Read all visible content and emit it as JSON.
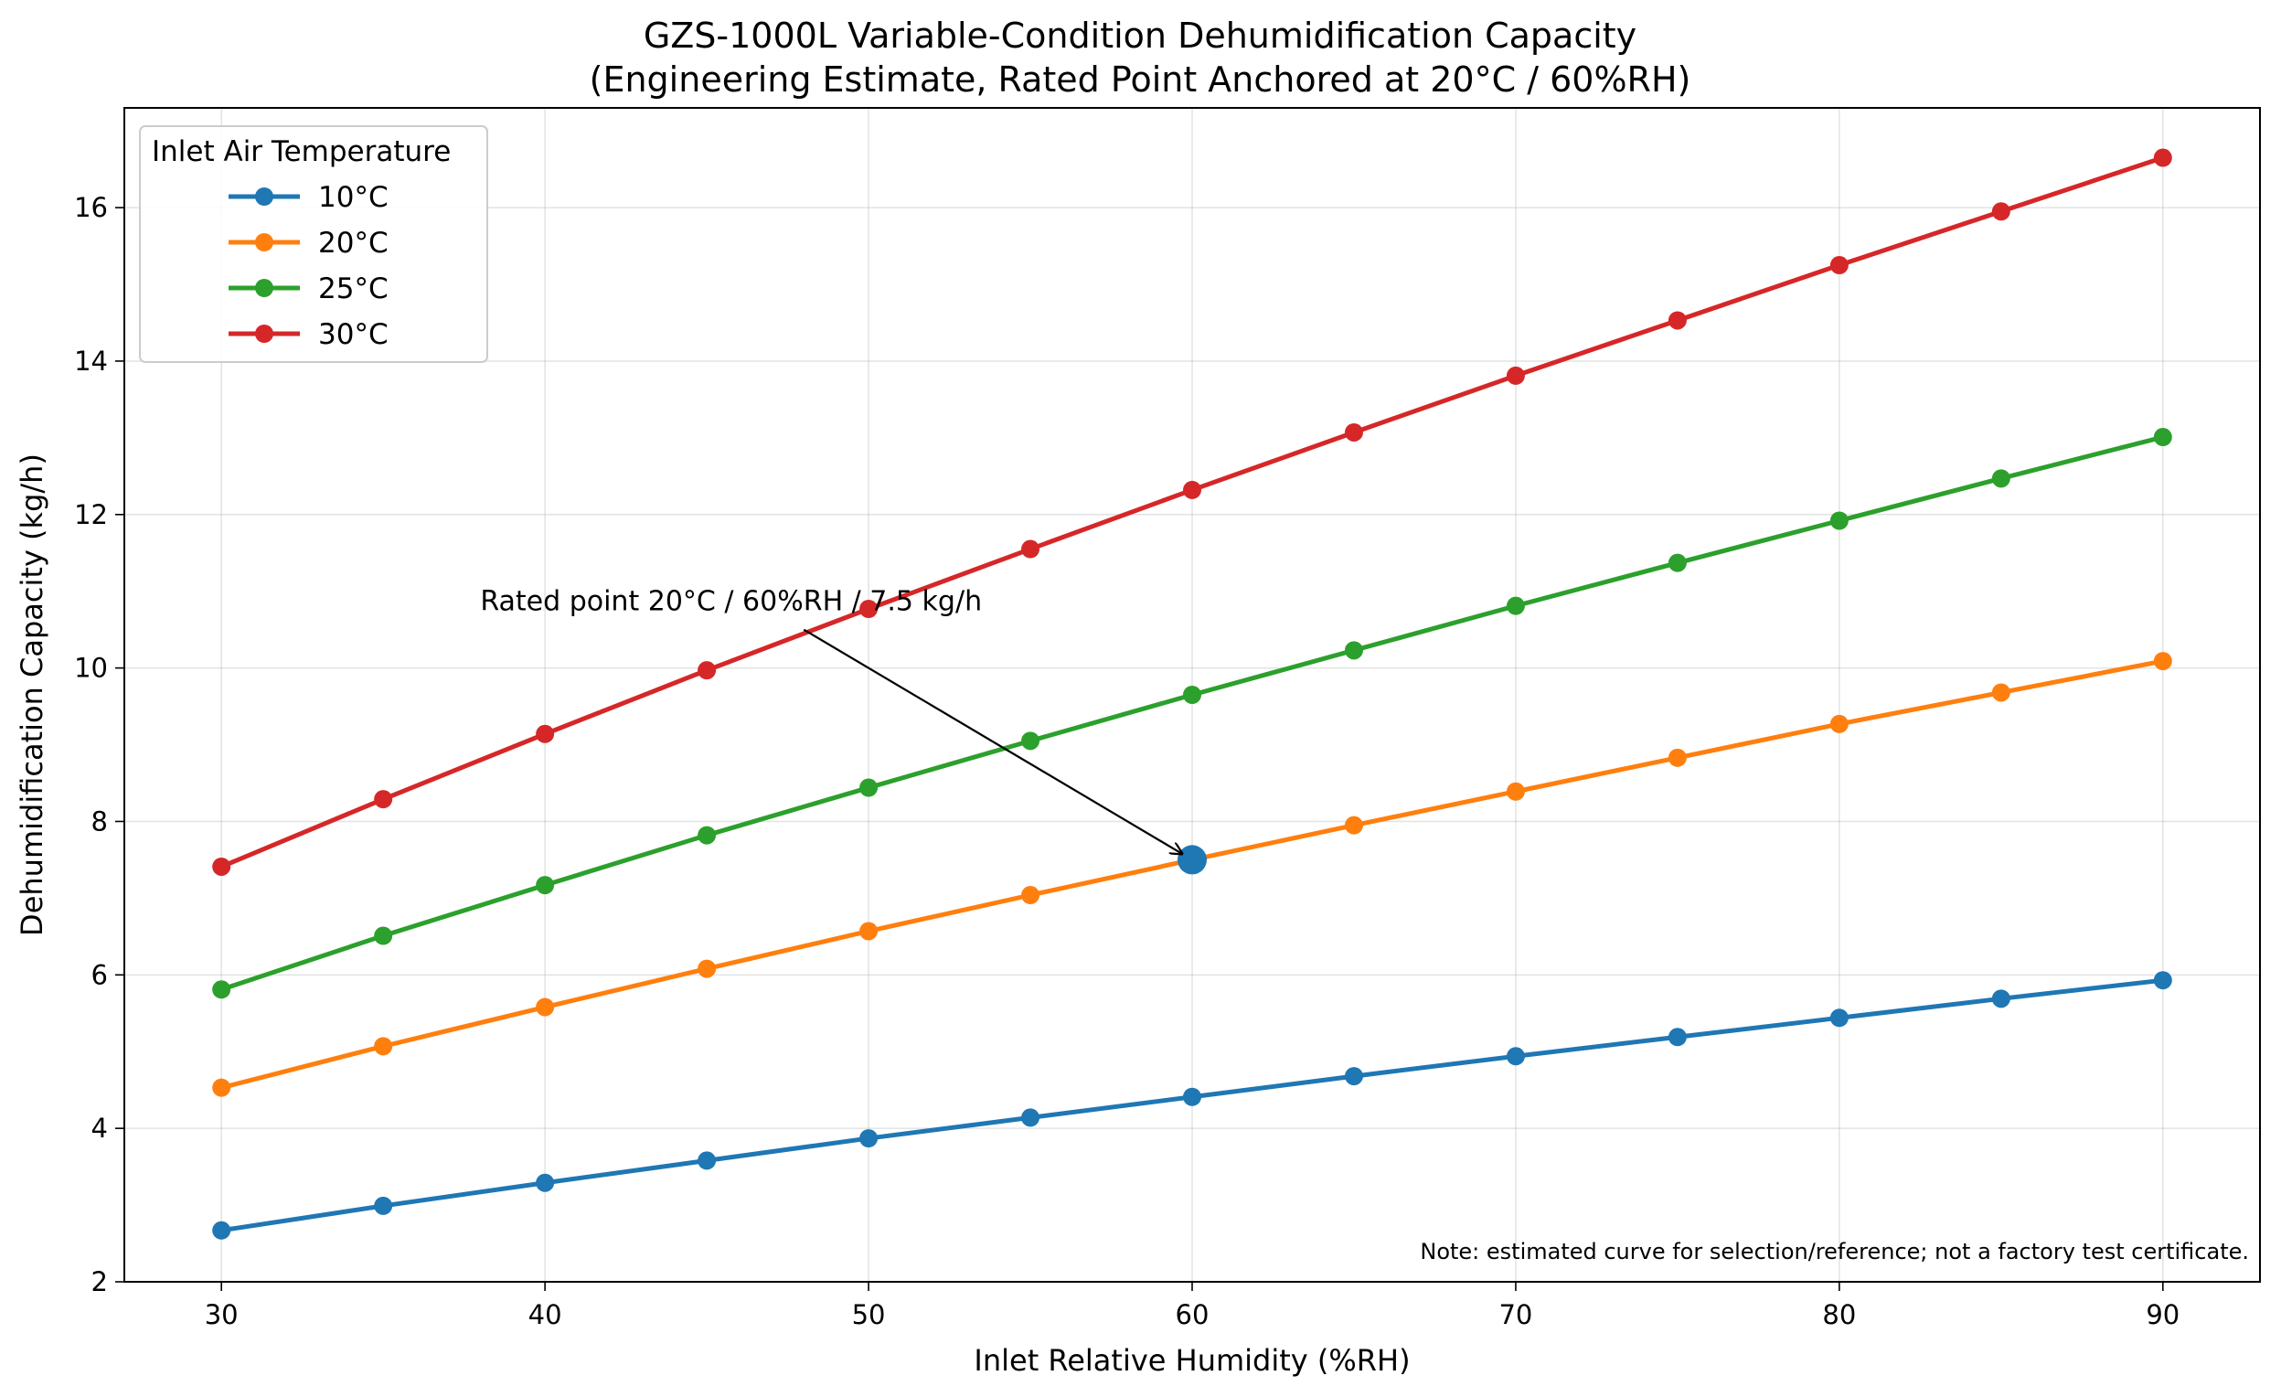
{
  "chart_data": {
    "type": "line",
    "title": "GZS-1000L Variable-Condition Dehumidification Capacity",
    "subtitle": "(Engineering Estimate, Rated Point Anchored at 20°C / 60%RH)",
    "xlabel": "Inlet Relative Humidity (%RH)",
    "ylabel": "Dehumidification Capacity (kg/h)",
    "xlim": [
      27,
      93
    ],
    "ylim": [
      2,
      17.3
    ],
    "xticks": [
      30,
      40,
      50,
      60,
      70,
      80,
      90
    ],
    "yticks": [
      2,
      4,
      6,
      8,
      10,
      12,
      14,
      16
    ],
    "grid": true,
    "legend": {
      "title": "Inlet Air Temperature",
      "placement": "top-left"
    },
    "x": [
      30,
      35,
      40,
      45,
      50,
      55,
      60,
      65,
      70,
      75,
      80,
      85,
      90
    ],
    "series": [
      {
        "name": "10°C",
        "color": "#1f77b4",
        "values": [
          2.67,
          2.99,
          3.29,
          3.58,
          3.87,
          4.14,
          4.41,
          4.68,
          4.94,
          5.19,
          5.44,
          5.69,
          5.93
        ]
      },
      {
        "name": "20°C",
        "color": "#ff7f0e",
        "values": [
          4.53,
          5.07,
          5.58,
          6.08,
          6.57,
          7.04,
          7.5,
          7.95,
          8.39,
          8.83,
          9.27,
          9.68,
          10.09
        ]
      },
      {
        "name": "25°C",
        "color": "#2ca02c",
        "values": [
          5.81,
          6.51,
          7.17,
          7.82,
          8.44,
          9.05,
          9.65,
          10.23,
          10.81,
          11.37,
          11.92,
          12.47,
          13.01
        ]
      },
      {
        "name": "30°C",
        "color": "#d62728",
        "values": [
          7.41,
          8.29,
          9.14,
          9.97,
          10.77,
          11.55,
          12.32,
          13.07,
          13.81,
          14.53,
          15.25,
          15.95,
          16.65
        ]
      }
    ],
    "rated_point": {
      "x": 60,
      "y": 7.5,
      "color": "#1f77b4"
    },
    "annotation": {
      "text": "Rated point  20°C / 60%RH / 7.5 kg/h",
      "text_x": 38,
      "text_y": 10.75,
      "arrow_from_x": 48,
      "arrow_from_y": 10.5,
      "arrow_to_x": 60,
      "arrow_to_y": 7.5
    },
    "note": "Note: estimated curve for selection/reference; not a factory test certificate."
  }
}
